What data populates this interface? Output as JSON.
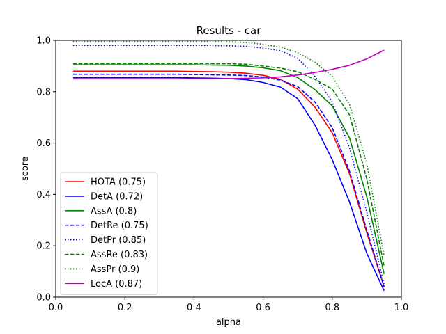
{
  "chart_data": {
    "type": "line",
    "title": "Results - car",
    "xlabel": "alpha",
    "ylabel": "score",
    "xlim": [
      0.0,
      1.0
    ],
    "ylim": [
      0.0,
      1.0
    ],
    "xticks": [
      "0.0",
      "0.2",
      "0.4",
      "0.6",
      "0.8",
      "1.0"
    ],
    "yticks": [
      "0.0",
      "0.2",
      "0.4",
      "0.6",
      "0.8",
      "1.0"
    ],
    "grid": false,
    "legend_position": "lower-left",
    "x": [
      0.05,
      0.1,
      0.15,
      0.2,
      0.25,
      0.3,
      0.35,
      0.4,
      0.45,
      0.5,
      0.55,
      0.6,
      0.65,
      0.7,
      0.75,
      0.8,
      0.85,
      0.9,
      0.95
    ],
    "series": [
      {
        "name": "HOTA (0.75)",
        "color": "#ff0000",
        "dash": "solid",
        "values": [
          0.88,
          0.88,
          0.88,
          0.88,
          0.88,
          0.88,
          0.88,
          0.879,
          0.878,
          0.876,
          0.872,
          0.864,
          0.848,
          0.81,
          0.74,
          0.64,
          0.48,
          0.25,
          0.04
        ]
      },
      {
        "name": "DetA (0.72)",
        "color": "#0000ff",
        "dash": "solid",
        "values": [
          0.855,
          0.855,
          0.855,
          0.855,
          0.855,
          0.855,
          0.855,
          0.854,
          0.853,
          0.851,
          0.847,
          0.836,
          0.818,
          0.773,
          0.67,
          0.535,
          0.37,
          0.17,
          0.025
        ]
      },
      {
        "name": "AssA (0.8)",
        "color": "#008000",
        "dash": "solid",
        "values": [
          0.905,
          0.905,
          0.905,
          0.905,
          0.905,
          0.905,
          0.905,
          0.905,
          0.904,
          0.903,
          0.9,
          0.893,
          0.882,
          0.855,
          0.808,
          0.745,
          0.62,
          0.39,
          0.09
        ]
      },
      {
        "name": "DetRe (0.75)",
        "color": "#0000ff",
        "dash": "dashed",
        "values": [
          0.868,
          0.868,
          0.868,
          0.868,
          0.868,
          0.868,
          0.868,
          0.867,
          0.866,
          0.865,
          0.863,
          0.857,
          0.845,
          0.82,
          0.76,
          0.66,
          0.49,
          0.26,
          0.04
        ]
      },
      {
        "name": "DetPr (0.85)",
        "color": "#0000ff",
        "dash": "dotted",
        "values": [
          0.98,
          0.98,
          0.98,
          0.98,
          0.98,
          0.98,
          0.98,
          0.98,
          0.98,
          0.979,
          0.977,
          0.97,
          0.96,
          0.93,
          0.86,
          0.76,
          0.58,
          0.33,
          0.05
        ]
      },
      {
        "name": "AssRe (0.83)",
        "color": "#008000",
        "dash": "dashed",
        "values": [
          0.91,
          0.91,
          0.91,
          0.91,
          0.91,
          0.91,
          0.91,
          0.91,
          0.91,
          0.909,
          0.907,
          0.9,
          0.892,
          0.878,
          0.848,
          0.81,
          0.71,
          0.46,
          0.12
        ]
      },
      {
        "name": "AssPr (0.9)",
        "color": "#008000",
        "dash": "dotted",
        "values": [
          0.995,
          0.995,
          0.995,
          0.995,
          0.995,
          0.995,
          0.995,
          0.995,
          0.995,
          0.994,
          0.992,
          0.985,
          0.974,
          0.952,
          0.915,
          0.86,
          0.75,
          0.52,
          0.16
        ]
      },
      {
        "name": "LocA (0.87)",
        "color": "#bf00bf",
        "dash": "solid",
        "values": [
          0.85,
          0.85,
          0.85,
          0.85,
          0.85,
          0.85,
          0.85,
          0.85,
          0.85,
          0.851,
          0.852,
          0.854,
          0.858,
          0.865,
          0.875,
          0.887,
          0.903,
          0.928,
          0.962
        ]
      }
    ]
  }
}
